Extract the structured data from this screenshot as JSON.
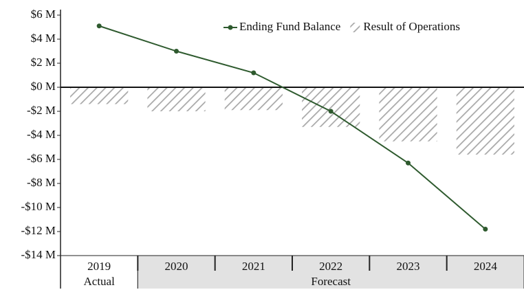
{
  "chart_data": {
    "type": "bar",
    "categories": [
      "2019",
      "2020",
      "2021",
      "2022",
      "2023",
      "2024"
    ],
    "groups": [
      {
        "name": "Actual",
        "span": 1
      },
      {
        "name": "Forecast",
        "span": 5
      }
    ],
    "series": [
      {
        "name": "Ending Fund Balance",
        "type": "line",
        "color": "#2e5a2e",
        "values": [
          5.1,
          3.0,
          1.2,
          -2.0,
          -6.3,
          -11.8
        ]
      },
      {
        "name": "Result of Operations",
        "type": "bar",
        "color": "#a8a8a8",
        "pattern": "hatch",
        "values": [
          -1.4,
          -2.0,
          -1.9,
          -3.3,
          -4.5,
          -5.6
        ]
      }
    ],
    "ylim": [
      -14,
      6
    ],
    "yticks": [
      {
        "value": -14,
        "label": "-$14 M"
      },
      {
        "value": -12,
        "label": "-$12 M"
      },
      {
        "value": -10,
        "label": "-$10 M"
      },
      {
        "value": -8,
        "label": "-$8 M"
      },
      {
        "value": -6,
        "label": "-$6 M"
      },
      {
        "value": -4,
        "label": "-$4 M"
      },
      {
        "value": -2,
        "label": "-$2 M"
      },
      {
        "value": 0,
        "label": "$0 M"
      },
      {
        "value": 2,
        "label": "$2 M"
      },
      {
        "value": 4,
        "label": "$4 M"
      },
      {
        "value": 6,
        "label": "$6 M"
      }
    ],
    "grid": false,
    "legend": "upper right"
  }
}
